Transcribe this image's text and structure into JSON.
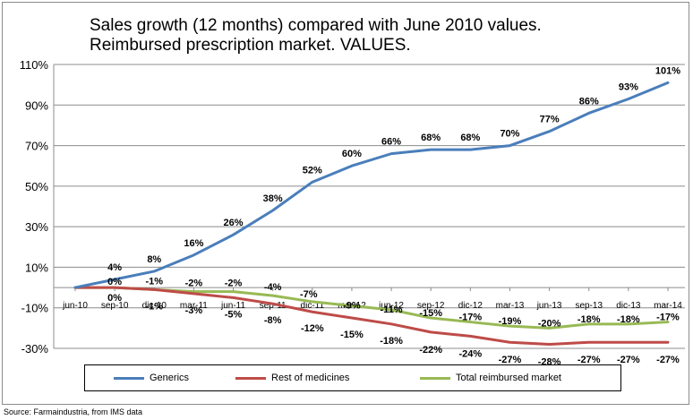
{
  "title": {
    "line1": "Sales growth (12 months) compared with June 2010 values.",
    "line2": "Reimbursed prescription market. VALUES."
  },
  "source": "Source: Farmaindustria, from IMS data",
  "chart_data": {
    "type": "line",
    "categories": [
      "jun-10",
      "sep-10",
      "dic-10",
      "mar-11",
      "jun-11",
      "sep-11",
      "dic-11",
      "mar-12",
      "jun-12",
      "sep-12",
      "dic-12",
      "mar-13",
      "jun-13",
      "sep-13",
      "dic-13",
      "mar-14"
    ],
    "ylim": [
      -30,
      110
    ],
    "yticks": [
      -30,
      -10,
      10,
      30,
      50,
      70,
      90,
      110
    ],
    "ytick_labels": [
      "-30%",
      "-10%",
      "10%",
      "30%",
      "50%",
      "70%",
      "90%",
      "110%"
    ],
    "grid": "horizontal",
    "legend_position": "bottom",
    "series": [
      {
        "name": "Generics",
        "color": "#4a7ebb",
        "values": [
          0,
          4,
          8,
          16,
          26,
          38,
          52,
          60,
          66,
          68,
          68,
          70,
          77,
          86,
          93,
          101
        ],
        "labels": [
          "",
          "4%",
          "8%",
          "16%",
          "26%",
          "38%",
          "52%",
          "60%",
          "66%",
          "68%",
          "68%",
          "70%",
          "77%",
          "86%",
          "93%",
          "101%"
        ]
      },
      {
        "name": "Rest of medicines",
        "color": "#be4b48",
        "values": [
          0,
          0,
          -1,
          -3,
          -5,
          -8,
          -12,
          -15,
          -18,
          -22,
          -24,
          -27,
          -28,
          -27,
          -27,
          -27
        ],
        "labels": [
          "",
          "0%",
          "-1%",
          "-3%",
          "-5%",
          "-8%",
          "-12%",
          "-15%",
          "-18%",
          "-22%",
          "-24%",
          "-27%",
          "-28%",
          "-27%",
          "-27%",
          "-27%"
        ]
      },
      {
        "name": "Total reimbursed market",
        "color": "#98b954",
        "values": [
          0,
          0,
          -1,
          -2,
          -2,
          -4,
          -7,
          -9,
          -11,
          -15,
          -17,
          -19,
          -20,
          -18,
          -18,
          -17
        ],
        "labels": [
          "",
          "0%",
          "-1%",
          "-2%",
          "-2%",
          "-4%",
          "-7%",
          "-9%",
          "-11%",
          "-15%",
          "-17%",
          "-19%",
          "-20%",
          "-18%",
          "-18%",
          "-17%"
        ]
      }
    ]
  }
}
